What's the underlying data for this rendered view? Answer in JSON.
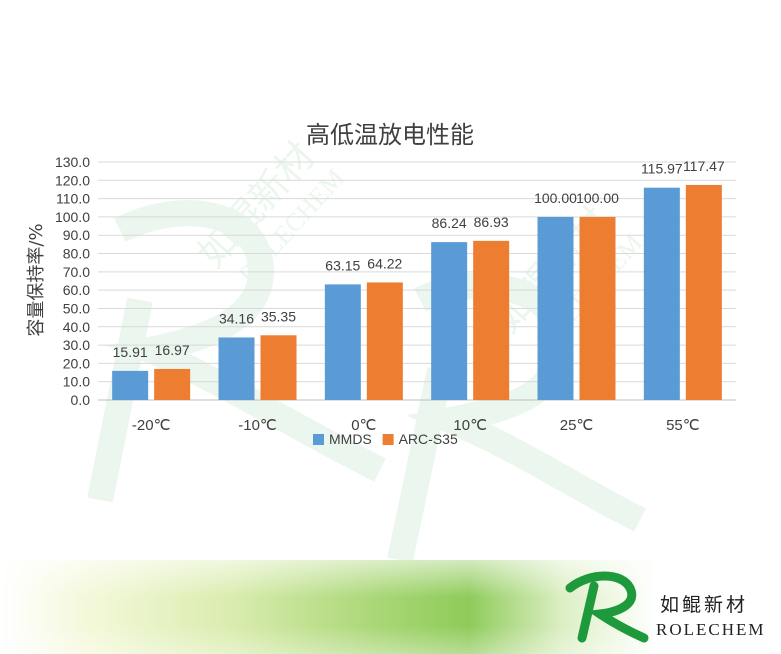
{
  "chart_data": {
    "type": "bar",
    "title": "高低温放电性能",
    "ylabel": "容量保持率/%",
    "xlabel": "",
    "categories": [
      "-20℃",
      "-10℃",
      "0℃",
      "10℃",
      "25℃",
      "55℃"
    ],
    "series": [
      {
        "name": "MMDS",
        "color": "#5b9bd5",
        "values": [
          15.91,
          34.16,
          63.15,
          86.24,
          100.0,
          115.97
        ]
      },
      {
        "name": "ARC-S35",
        "color": "#ed7d31",
        "values": [
          16.97,
          35.35,
          64.22,
          86.93,
          100.0,
          117.47
        ]
      }
    ],
    "ylim": [
      0,
      130
    ],
    "ytick_step": 10,
    "ytick_labels": [
      "0.0",
      "10.0",
      "20.0",
      "30.0",
      "40.0",
      "50.0",
      "60.0",
      "70.0",
      "80.0",
      "90.0",
      "100.0",
      "110.0",
      "120.0",
      "130.0"
    ],
    "grid": true,
    "legend_position": "bottom"
  },
  "brand": {
    "name_cn": "如鲲新材",
    "name_en": "ROLECHEM",
    "watermark_cn": "如鲲新材",
    "watermark_en": "ROLECHEM",
    "green": "#1e9a3c"
  }
}
